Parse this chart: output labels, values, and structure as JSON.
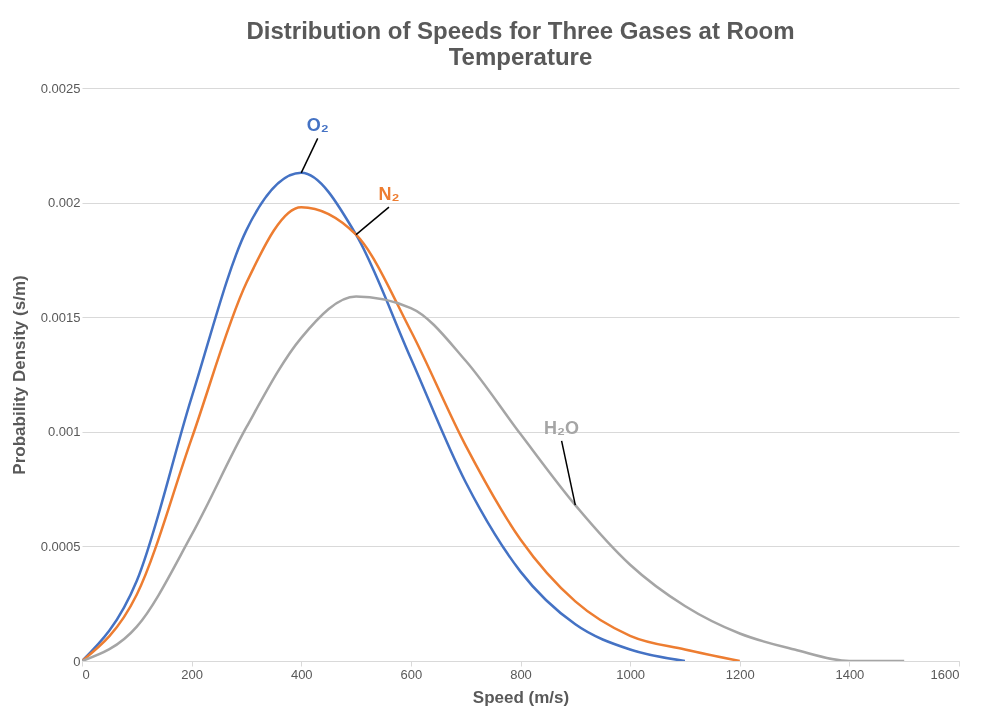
{
  "chart_data": {
    "type": "line",
    "title": "Distribution of Speeds for Three Gases at Room Temperature",
    "xlabel": "Speed (m/s)",
    "ylabel": "Probability Density (s/m)",
    "x": [
      0,
      100,
      200,
      300,
      400,
      500,
      600,
      700,
      800,
      900,
      1000,
      1100,
      1200,
      1300,
      1400,
      1500
    ],
    "series": [
      {
        "name": "O₂",
        "color": "#4472c4",
        "values": [
          0,
          0.00035,
          0.00115,
          0.00188,
          0.00213,
          0.00186,
          0.00132,
          0.00078,
          0.00039,
          0.00016,
          5e-05,
          0,
          null,
          null,
          null,
          null
        ]
      },
      {
        "name": "N₂",
        "color": "#ed7d31",
        "values": [
          0,
          0.00029,
          0.00097,
          0.00165,
          0.00198,
          0.00186,
          0.00144,
          0.00094,
          0.00053,
          0.00026,
          0.00011,
          5e-05,
          0,
          null,
          null,
          null
        ]
      },
      {
        "name": "H₂O",
        "color": "#a5a5a5",
        "values": [
          0,
          0.00015,
          0.00055,
          0.00102,
          0.00141,
          0.00159,
          0.00154,
          0.00131,
          0.00099,
          0.00068,
          0.00042,
          0.00024,
          0.00012,
          5e-05,
          0,
          0
        ]
      }
    ],
    "xlim": [
      0,
      1600
    ],
    "xticks": [
      0,
      200,
      400,
      600,
      800,
      1000,
      1200,
      1400,
      1600
    ],
    "ylim": [
      0,
      0.0025
    ],
    "yticks": [
      0,
      0.0005,
      0.001,
      0.0015,
      0.002,
      0.0025
    ],
    "grid": "y",
    "legend": false,
    "marker": "none",
    "line_style": "solid"
  }
}
